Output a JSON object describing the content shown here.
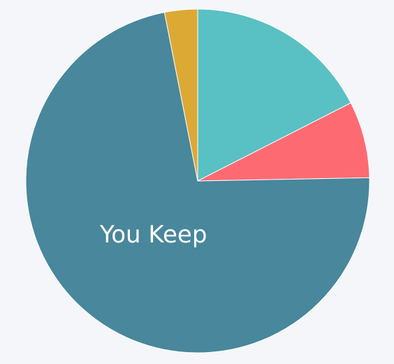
{
  "colors": {
    "background": "#f4f6f9"
  },
  "chart_data": {
    "type": "pie",
    "categories": [
      "",
      "",
      "",
      ""
    ],
    "values": [
      17.5,
      7.2,
      72.2,
      3.1
    ],
    "colors": [
      "#59c0c4",
      "#fe6a72",
      "#48879c",
      "#dca935"
    ],
    "labels": [
      "",
      "",
      "You Keep",
      ""
    ],
    "start_angle_deg": 0,
    "direction": "clockwise"
  }
}
